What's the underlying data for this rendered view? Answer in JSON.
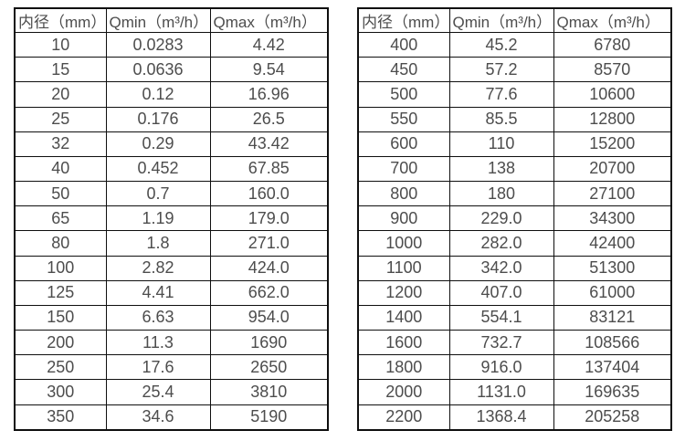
{
  "page": {
    "background": "#ffffff",
    "text_color": "#4d4d4d",
    "border_color": "#0f0f0f"
  },
  "tables": [
    {
      "name": "diameter-flow-table-small",
      "headers": [
        "内径（mm）",
        "Qmin（m³/h）",
        "Qmax（m³/h）"
      ],
      "rows": [
        [
          "10",
          "0.0283",
          "4.42"
        ],
        [
          "15",
          "0.0636",
          "9.54"
        ],
        [
          "20",
          "0.12",
          "16.96"
        ],
        [
          "25",
          "0.176",
          "26.5"
        ],
        [
          "32",
          "0.29",
          "43.42"
        ],
        [
          "40",
          "0.452",
          "67.85"
        ],
        [
          "50",
          "0.7",
          "160.0"
        ],
        [
          "65",
          "1.19",
          "179.0"
        ],
        [
          "80",
          "1.8",
          "271.0"
        ],
        [
          "100",
          "2.82",
          "424.0"
        ],
        [
          "125",
          "4.41",
          "662.0"
        ],
        [
          "150",
          "6.63",
          "954.0"
        ],
        [
          "200",
          "11.3",
          "1690"
        ],
        [
          "250",
          "17.6",
          "2650"
        ],
        [
          "300",
          "25.4",
          "3810"
        ],
        [
          "350",
          "34.6",
          "5190"
        ]
      ]
    },
    {
      "name": "diameter-flow-table-large",
      "headers": [
        "内径（mm）",
        "Qmin（m³/h）",
        "Qmax（m³/h）"
      ],
      "rows": [
        [
          "400",
          "45.2",
          "6780"
        ],
        [
          "450",
          "57.2",
          "8570"
        ],
        [
          "500",
          "77.6",
          "10600"
        ],
        [
          "550",
          "85.5",
          "12800"
        ],
        [
          "600",
          "110",
          "15200"
        ],
        [
          "700",
          "138",
          "20700"
        ],
        [
          "800",
          "180",
          "27100"
        ],
        [
          "900",
          "229.0",
          "34300"
        ],
        [
          "1000",
          "282.0",
          "42400"
        ],
        [
          "1100",
          "342.0",
          "51300"
        ],
        [
          "1200",
          "407.0",
          "61000"
        ],
        [
          "1400",
          "554.1",
          "83121"
        ],
        [
          "1600",
          "732.7",
          "108566"
        ],
        [
          "1800",
          "916.0",
          "137404"
        ],
        [
          "2000",
          "1131.0",
          "169635"
        ],
        [
          "2200",
          "1368.4",
          "205258"
        ]
      ]
    }
  ]
}
